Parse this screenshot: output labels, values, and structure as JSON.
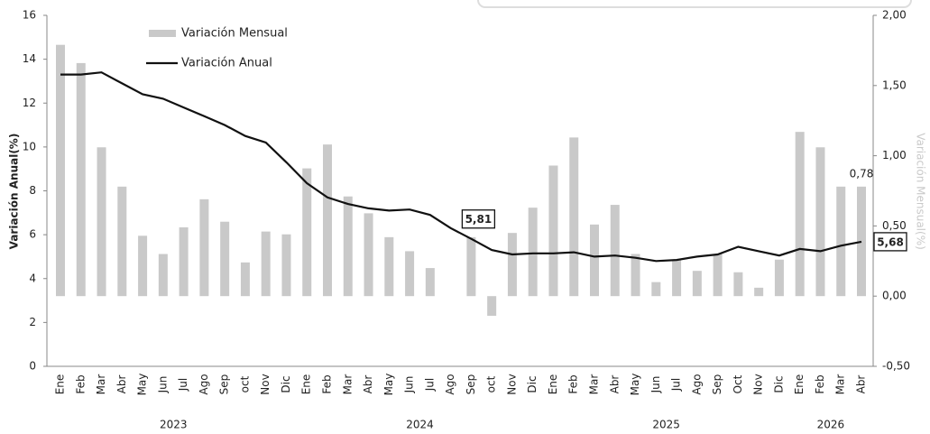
{
  "chart_data": {
    "type": "bar-line",
    "y_label": "Variación Anual(%)",
    "y2_label": "Variación Mensual(%)",
    "categories": [
      "Ene",
      "Feb",
      "Mar",
      "Abr",
      "May",
      "Jun",
      "Jul",
      "Ago",
      "Sep",
      "oct",
      "Nov",
      "Dic",
      "Ene",
      "Feb",
      "Mar",
      "Abr",
      "May",
      "Jun",
      "Jul",
      "Ago",
      "Sep",
      "oct",
      "Nov",
      "Dic",
      "Ene",
      "Feb",
      "Mar",
      "Abr",
      "May",
      "Jun",
      "Jul",
      "Ago",
      "Sep",
      "Oct",
      "Nov",
      "Dic",
      "Ene",
      "Feb",
      "Mar",
      "Abr"
    ],
    "groups": [
      "2023",
      "2024",
      "2025",
      "2026"
    ],
    "series": [
      {
        "name": "Variación Mensual",
        "type": "bar",
        "axis": "y2",
        "color": "#c9c9c9",
        "values": [
          1.79,
          1.66,
          1.06,
          0.78,
          0.43,
          0.3,
          0.49,
          0.69,
          0.53,
          0.24,
          0.46,
          0.44,
          0.91,
          1.08,
          0.71,
          0.59,
          0.42,
          0.32,
          0.2,
          0,
          0.42,
          -0.14,
          0.45,
          0.63,
          0.93,
          1.13,
          0.51,
          0.65,
          0.3,
          0.1,
          0.26,
          0.18,
          0.3,
          0.17,
          0.06,
          0.26,
          1.17,
          1.06,
          0.78,
          0.78
        ],
        "value_labels": [
          null,
          null,
          null,
          null,
          null,
          null,
          null,
          null,
          null,
          null,
          null,
          null,
          null,
          null,
          null,
          null,
          null,
          null,
          null,
          null,
          null,
          null,
          null,
          null,
          null,
          null,
          null,
          null,
          null,
          null,
          null,
          null,
          null,
          null,
          null,
          null,
          null,
          null,
          null,
          "0,78"
        ]
      },
      {
        "name": "Variación Anual",
        "type": "line",
        "color": "#111111",
        "values": [
          13.3,
          13.3,
          13.4,
          12.9,
          12.4,
          12.2,
          11.8,
          11.4,
          11.0,
          10.5,
          10.2,
          9.3,
          8.35,
          7.7,
          7.4,
          7.2,
          7.1,
          7.15,
          6.9,
          6.3,
          5.81,
          5.3,
          5.1,
          5.15,
          5.15,
          5.2,
          5.0,
          5.05,
          4.95,
          4.8,
          4.85,
          5.0,
          5.1,
          5.45,
          5.25,
          5.05,
          5.35,
          5.25,
          5.5,
          5.68
        ],
        "value_labels": [
          null,
          null,
          null,
          null,
          null,
          null,
          null,
          null,
          null,
          null,
          null,
          null,
          null,
          null,
          null,
          null,
          null,
          null,
          null,
          null,
          "5,81",
          null,
          null,
          null,
          null,
          null,
          null,
          null,
          null,
          null,
          null,
          null,
          null,
          null,
          null,
          null,
          null,
          null,
          null,
          "5,68"
        ]
      }
    ],
    "ylim": [
      0,
      16
    ],
    "yticks": [
      0,
      2,
      4,
      6,
      8,
      10,
      12,
      14,
      16
    ],
    "y2lim": [
      -0.5,
      2.0
    ],
    "y2ticks": [
      {
        "value": -0.5,
        "label": "-0,50"
      },
      {
        "value": 0,
        "label": "0,00"
      },
      {
        "value": 0.5,
        "label": "0,50"
      },
      {
        "value": 1.0,
        "label": "1,00"
      },
      {
        "value": 1.5,
        "label": "1,50"
      },
      {
        "value": 2.0,
        "label": "2,00"
      }
    ],
    "legend": "upper-left",
    "grid": false
  }
}
